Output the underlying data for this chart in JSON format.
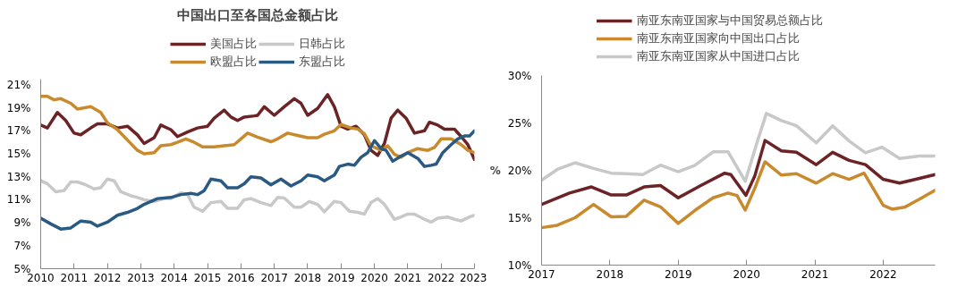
{
  "chart_data": [
    {
      "type": "line",
      "title": "中国出口至各国总金额占比",
      "legend": "top",
      "grid": false,
      "line_style": "solid",
      "xlim": [
        2010,
        2023
      ],
      "xticks": [
        2010,
        2011,
        2012,
        2013,
        2014,
        2015,
        2016,
        2017,
        2018,
        2019,
        2020,
        2021,
        2022,
        2023
      ],
      "ylim": [
        5,
        21.5
      ],
      "yticks": [
        {
          "value": 5,
          "label": "5%"
        },
        {
          "value": 7,
          "label": "7%"
        },
        {
          "value": 9,
          "label": "9%"
        },
        {
          "value": 11,
          "label": "11%"
        },
        {
          "value": 13,
          "label": "13%"
        },
        {
          "value": 15,
          "label": "15%"
        },
        {
          "value": 17,
          "label": "17%"
        },
        {
          "value": 19,
          "label": "19%"
        },
        {
          "value": 21,
          "label": "21%"
        }
      ],
      "series": [
        {
          "name": "美国占比",
          "color": "#6b2326",
          "x": [
            2010.0,
            2010.2,
            2010.5,
            2010.75,
            2011.0,
            2011.2,
            2011.5,
            2011.7,
            2012.0,
            2012.3,
            2012.6,
            2012.9,
            2013.1,
            2013.4,
            2013.6,
            2013.9,
            2014.1,
            2014.4,
            2014.7,
            2015.0,
            2015.2,
            2015.5,
            2015.7,
            2015.9,
            2016.1,
            2016.4,
            2016.5,
            2016.7,
            2017.0,
            2017.3,
            2017.6,
            2017.8,
            2018.0,
            2018.3,
            2018.6,
            2018.8,
            2019.0,
            2019.2,
            2019.45,
            2019.7,
            2019.9,
            2020.1,
            2020.3,
            2020.5,
            2020.7,
            2020.95,
            2021.2,
            2021.5,
            2021.65,
            2021.9,
            2022.1,
            2022.4,
            2022.6,
            2022.8,
            2023.0
          ],
          "values": [
            17.5,
            17.25,
            18.6,
            17.9,
            16.8,
            16.65,
            17.25,
            17.6,
            17.6,
            17.25,
            17.4,
            16.65,
            15.9,
            16.4,
            17.5,
            17.1,
            16.5,
            16.9,
            17.25,
            17.4,
            18.1,
            18.8,
            18.2,
            17.9,
            18.2,
            18.3,
            18.35,
            19.1,
            18.35,
            19.1,
            19.8,
            19.4,
            18.35,
            18.95,
            20.15,
            19.1,
            17.4,
            17.15,
            17.4,
            16.65,
            15.3,
            14.85,
            15.9,
            18.1,
            18.8,
            18.1,
            16.8,
            17.0,
            17.75,
            17.5,
            17.15,
            17.15,
            16.5,
            15.8,
            14.5
          ]
        },
        {
          "name": "欧盟占比",
          "color": "#c98a2e",
          "x": [
            2010.0,
            2010.2,
            2010.4,
            2010.6,
            2010.9,
            2011.1,
            2011.5,
            2011.8,
            2012.0,
            2012.3,
            2012.6,
            2012.9,
            2013.1,
            2013.4,
            2013.6,
            2013.9,
            2014.1,
            2014.35,
            2014.6,
            2014.85,
            2015.2,
            2015.5,
            2015.8,
            2016.0,
            2016.2,
            2016.5,
            2016.9,
            2017.1,
            2017.4,
            2017.7,
            2018.0,
            2018.3,
            2018.5,
            2018.8,
            2019.0,
            2019.3,
            2019.5,
            2019.7,
            2019.9,
            2020.2,
            2020.4,
            2020.6,
            2020.8,
            2021.0,
            2021.3,
            2021.6,
            2021.8,
            2022.0,
            2022.3,
            2022.6,
            2022.8,
            2023.0
          ],
          "values": [
            20.0,
            20.0,
            19.7,
            19.8,
            19.4,
            18.9,
            19.1,
            18.6,
            17.7,
            17.1,
            16.2,
            15.3,
            15.0,
            15.1,
            15.7,
            15.8,
            16.0,
            16.3,
            16.0,
            15.6,
            15.6,
            15.7,
            15.8,
            16.3,
            16.8,
            16.45,
            16.05,
            16.3,
            16.8,
            16.6,
            16.4,
            16.4,
            16.7,
            17.0,
            17.55,
            17.25,
            17.15,
            16.75,
            15.7,
            15.3,
            15.7,
            14.95,
            14.7,
            15.1,
            15.45,
            15.3,
            15.55,
            16.3,
            16.3,
            15.8,
            15.3,
            15.1
          ]
        },
        {
          "name": "日韩占比",
          "color": "#c8c8c8",
          "x": [
            2010.0,
            2010.2,
            2010.45,
            2010.7,
            2010.9,
            2011.1,
            2011.35,
            2011.6,
            2011.8,
            2012.0,
            2012.2,
            2012.4,
            2012.7,
            2012.9,
            2013.1,
            2013.4,
            2013.7,
            2013.9,
            2014.2,
            2014.4,
            2014.6,
            2014.85,
            2015.1,
            2015.4,
            2015.6,
            2015.9,
            2016.1,
            2016.3,
            2016.6,
            2016.9,
            2017.1,
            2017.3,
            2017.6,
            2017.8,
            2018.05,
            2018.3,
            2018.5,
            2018.8,
            2019.0,
            2019.25,
            2019.5,
            2019.7,
            2019.9,
            2020.1,
            2020.3,
            2020.6,
            2020.8,
            2021.0,
            2021.2,
            2021.5,
            2021.7,
            2021.9,
            2022.2,
            2022.4,
            2022.6,
            2022.85,
            2023.0
          ],
          "values": [
            12.65,
            12.4,
            11.7,
            11.8,
            12.55,
            12.55,
            12.3,
            11.95,
            12.05,
            12.8,
            12.65,
            11.7,
            11.35,
            11.2,
            11.0,
            10.85,
            11.1,
            11.1,
            11.6,
            11.45,
            10.35,
            10.0,
            10.75,
            10.85,
            10.25,
            10.25,
            11.0,
            11.1,
            10.75,
            10.5,
            11.2,
            11.15,
            10.35,
            10.35,
            10.85,
            10.6,
            9.95,
            10.85,
            10.75,
            10.0,
            9.9,
            9.75,
            10.75,
            11.1,
            10.6,
            9.3,
            9.5,
            9.75,
            9.75,
            9.3,
            9.05,
            9.4,
            9.5,
            9.3,
            9.15,
            9.5,
            9.65
          ]
        },
        {
          "name": "东盟占比",
          "color": "#2a5a82",
          "x": [
            2010.0,
            2010.3,
            2010.6,
            2010.9,
            2011.2,
            2011.5,
            2011.7,
            2012.0,
            2012.3,
            2012.6,
            2012.9,
            2013.1,
            2013.5,
            2013.9,
            2014.2,
            2014.5,
            2014.7,
            2014.9,
            2015.1,
            2015.4,
            2015.6,
            2015.9,
            2016.1,
            2016.3,
            2016.6,
            2016.9,
            2017.2,
            2017.5,
            2017.8,
            2018.0,
            2018.3,
            2018.5,
            2018.8,
            2018.95,
            2019.2,
            2019.4,
            2019.6,
            2019.8,
            2020.0,
            2020.2,
            2020.35,
            2020.55,
            2020.8,
            2021.0,
            2021.3,
            2021.5,
            2021.7,
            2021.85,
            2022.05,
            2022.3,
            2022.5,
            2022.7,
            2022.85,
            2023.0
          ],
          "values": [
            9.4,
            8.9,
            8.45,
            8.55,
            9.15,
            9.05,
            8.7,
            9.05,
            9.65,
            9.9,
            10.25,
            10.6,
            11.1,
            11.2,
            11.45,
            11.55,
            11.45,
            11.8,
            12.8,
            12.65,
            12.05,
            12.05,
            12.4,
            13.0,
            12.9,
            12.3,
            12.8,
            12.2,
            12.65,
            13.15,
            13.0,
            12.65,
            13.15,
            13.9,
            14.1,
            14.0,
            14.7,
            15.1,
            16.15,
            15.45,
            15.3,
            14.35,
            14.8,
            15.1,
            14.6,
            13.9,
            14.0,
            14.1,
            15.1,
            15.8,
            16.3,
            16.55,
            16.55,
            17.0
          ]
        }
      ]
    },
    {
      "type": "line",
      "ylabel": "%",
      "legend": "top",
      "grid": false,
      "line_style": "solid",
      "xlim": [
        2017,
        2022.76
      ],
      "xticks": [
        2017,
        2018,
        2019,
        2020,
        2021,
        2022
      ],
      "ylim": [
        10,
        30
      ],
      "yticks": [
        {
          "value": 10,
          "label": "10%"
        },
        {
          "value": 15,
          "label": "15%"
        },
        {
          "value": 20,
          "label": "20%"
        },
        {
          "value": 25,
          "label": "25%"
        },
        {
          "value": 30,
          "label": "30%"
        }
      ],
      "series": [
        {
          "name": "南亚东南亚国家与中国贸易总额占比",
          "color": "#6b2326",
          "x": [
            2017.0,
            2017.41,
            2017.73,
            2018.02,
            2018.24,
            2018.5,
            2018.74,
            2019.0,
            2019.33,
            2019.68,
            2019.77,
            2019.99,
            2020.12,
            2020.27,
            2020.51,
            2020.73,
            2021.02,
            2021.26,
            2021.5,
            2021.74,
            2022.0,
            2022.24,
            2022.53,
            2022.76
          ],
          "values": [
            16.4,
            17.6,
            18.25,
            17.4,
            17.4,
            18.25,
            18.4,
            17.1,
            18.4,
            19.7,
            19.55,
            17.35,
            19.4,
            23.15,
            22.05,
            21.9,
            20.6,
            21.9,
            21.05,
            20.6,
            19.05,
            18.65,
            19.15,
            19.55
          ]
        },
        {
          "name": "南亚东南亚国家向中国出口占比",
          "color": "#c98a2e",
          "x": [
            2017.0,
            2017.23,
            2017.49,
            2017.76,
            2018.02,
            2018.24,
            2018.5,
            2018.74,
            2019.0,
            2019.24,
            2019.51,
            2019.73,
            2019.86,
            2019.98,
            2020.12,
            2020.27,
            2020.51,
            2020.73,
            2021.02,
            2021.26,
            2021.5,
            2021.72,
            2022.0,
            2022.13,
            2022.31,
            2022.53,
            2022.76
          ],
          "values": [
            13.95,
            14.2,
            15.0,
            16.4,
            15.1,
            15.15,
            16.85,
            16.15,
            14.4,
            15.75,
            17.1,
            17.6,
            17.35,
            15.8,
            18.1,
            20.9,
            19.5,
            19.65,
            18.65,
            19.65,
            19.05,
            19.7,
            16.3,
            15.9,
            16.1,
            16.95,
            17.9
          ]
        },
        {
          "name": "南亚东南亚国家从中国进口占比",
          "color": "#c8c8c8",
          "x": [
            2017.0,
            2017.23,
            2017.49,
            2017.76,
            2018.02,
            2018.24,
            2018.48,
            2018.74,
            2019.0,
            2019.24,
            2019.51,
            2019.73,
            2019.98,
            2020.16,
            2020.29,
            2020.51,
            2020.73,
            2021.02,
            2021.26,
            2021.5,
            2021.74,
            2021.98,
            2022.24,
            2022.53,
            2022.76
          ],
          "values": [
            18.95,
            20.1,
            20.8,
            20.2,
            19.7,
            19.65,
            19.55,
            20.55,
            19.85,
            20.5,
            21.95,
            21.95,
            18.85,
            23.1,
            26.0,
            25.25,
            24.7,
            22.9,
            24.7,
            23.1,
            21.85,
            22.45,
            21.25,
            21.5,
            21.5
          ]
        }
      ]
    }
  ]
}
